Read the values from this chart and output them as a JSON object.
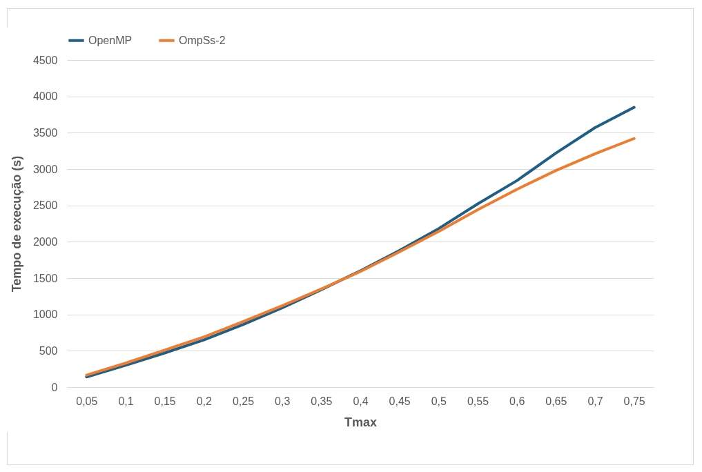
{
  "chart_data": {
    "type": "line",
    "xlabel": "Tmax",
    "ylabel": "Tempo de execução (s)",
    "categories": [
      "0,05",
      "0,1",
      "0,15",
      "0,2",
      "0,25",
      "0,3",
      "0,35",
      "0,4",
      "0,45",
      "0,5",
      "0,55",
      "0,6",
      "0,65",
      "0,7",
      "0,75"
    ],
    "series": [
      {
        "name": "OpenMP",
        "color": "#1f5f85",
        "values": [
          140,
          300,
          470,
          650,
          860,
          1090,
          1340,
          1600,
          1880,
          2180,
          2520,
          2840,
          3220,
          3570,
          3850
        ]
      },
      {
        "name": "OmpSs-2",
        "color": "#ed7d31",
        "values": [
          165,
          330,
          510,
          690,
          900,
          1120,
          1350,
          1590,
          1860,
          2140,
          2440,
          2720,
          2980,
          3210,
          3420
        ]
      }
    ],
    "ylim": [
      0,
      4500
    ],
    "yticks": [
      0,
      500,
      1000,
      1500,
      2000,
      2500,
      3000,
      3500,
      4000,
      4500
    ],
    "grid": "y",
    "legend": "top",
    "marker": "none",
    "line_style": "solid"
  }
}
